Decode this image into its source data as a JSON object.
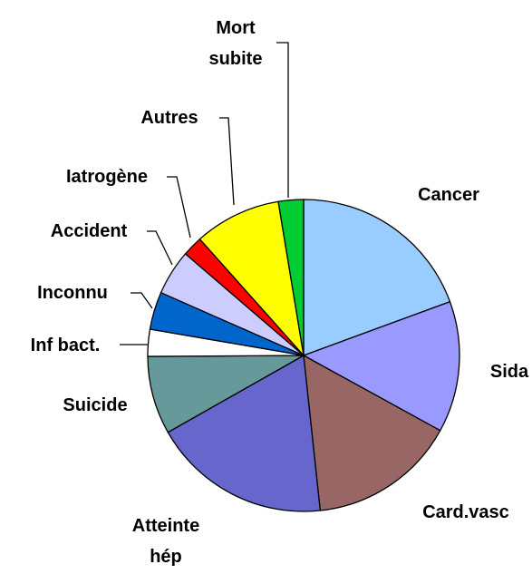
{
  "chart_data": {
    "type": "pie",
    "categories": [
      "Cancer",
      "Sida",
      "Card.vasc",
      "Atteinte hép",
      "Suicide",
      "Inf bact.",
      "Inconnu",
      "Accident",
      "Iatrogène",
      "Autres",
      "Mort subite"
    ],
    "values": [
      19.4,
      13.6,
      15.3,
      18.5,
      8.1,
      2.8,
      3.9,
      4.7,
      2.1,
      9.0,
      2.6
    ],
    "colors": [
      "#99ccff",
      "#9999ff",
      "#996666",
      "#6666cc",
      "#669999",
      "#ffffff",
      "#0066cc",
      "#ccccff",
      "#ff0000",
      "#ffff00",
      "#00cc33"
    ]
  }
}
